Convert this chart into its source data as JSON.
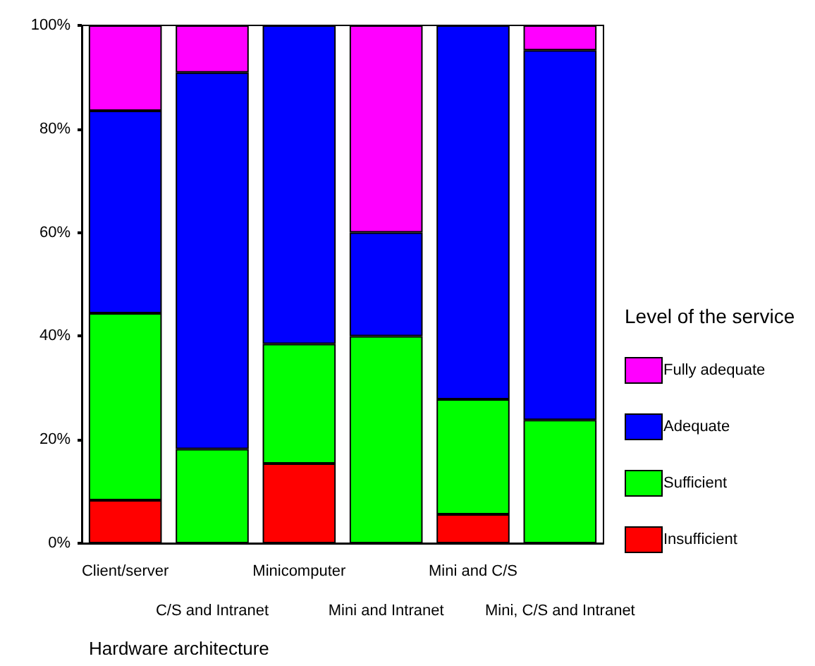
{
  "chart_data": {
    "type": "bar",
    "stacked": true,
    "xlabel": "Hardware architecture",
    "legend_title": "Level of the service",
    "legend": "right",
    "categories": [
      "Client/server",
      "C/S and Intranet",
      "Minicomputer",
      "Mini and Intranet",
      "Mini and C/S",
      "Mini, C/S and Intranet"
    ],
    "series": [
      {
        "name": "Insufficient",
        "color": "#ff0000",
        "values": [
          8.3,
          0,
          15.4,
          0,
          5.6,
          0
        ]
      },
      {
        "name": "Sufficient",
        "color": "#00ff00",
        "values": [
          36.1,
          18.2,
          23.1,
          40,
          22.2,
          23.8
        ]
      },
      {
        "name": "Adequate",
        "color": "#0000ff",
        "values": [
          39.1,
          72.7,
          61.5,
          20,
          72.2,
          71.4
        ]
      },
      {
        "name": "Fully adequate",
        "color": "#ff00ff",
        "values": [
          16.5,
          9.1,
          0,
          40,
          0,
          4.8
        ]
      }
    ],
    "ylim": [
      0,
      100
    ],
    "yticks": [
      {
        "value": 0,
        "label": "0%"
      },
      {
        "value": 20,
        "label": "20%"
      },
      {
        "value": 40,
        "label": "40%"
      },
      {
        "value": 60,
        "label": "60%"
      },
      {
        "value": 80,
        "label": "80%"
      },
      {
        "value": 100,
        "label": "100%"
      }
    ],
    "grid": false
  }
}
